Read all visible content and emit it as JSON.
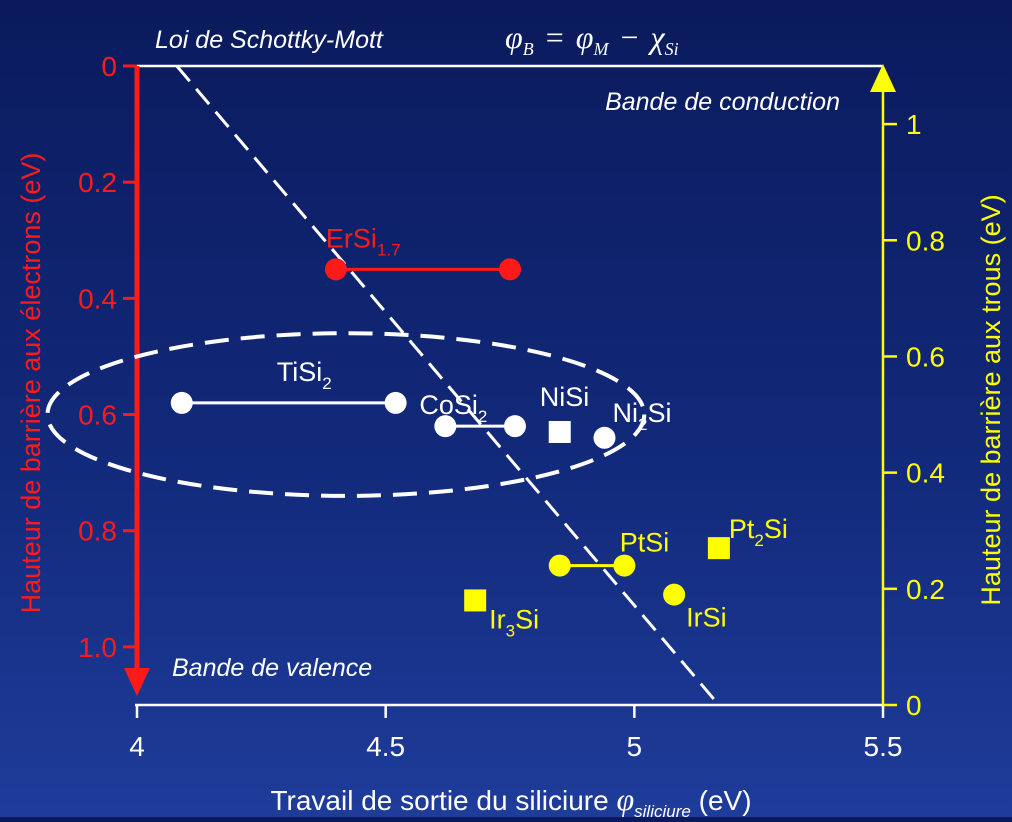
{
  "chart_data": {
    "type": "scatter",
    "title": "Loi de Schottky-Mott",
    "formula": {
      "phi": "φ",
      "B": "B",
      "eq": "=",
      "M": "M",
      "minus": "−",
      "chi": "χ",
      "Si": "Si"
    },
    "xlabel": {
      "main": "Travail de sortie du siliciure ",
      "phi": "φ",
      "sub": "siliciure",
      "unit": " (eV)"
    },
    "ylabel_left": "Hauteur de barrière aux électrons (eV)",
    "ylabel_right": "Hauteur de barrière aux trous (eV)",
    "xlim": [
      4,
      5.5
    ],
    "ylim_left": [
      0,
      1.1
    ],
    "ylim_right": [
      0,
      1.1
    ],
    "left_axis_inverted": true,
    "x_ticks": [
      "4",
      "4.5",
      "5",
      "5.5"
    ],
    "x_tick_values": [
      4,
      4.5,
      5,
      5.5
    ],
    "y_left_ticks": [
      "0",
      "0.2",
      "0.4",
      "0.6",
      "0.8",
      "1.0"
    ],
    "y_left_tick_values": [
      0,
      0.2,
      0.4,
      0.6,
      0.8,
      1.0
    ],
    "y_right_ticks": [
      "0",
      "0.2",
      "0.4",
      "0.6",
      "0.8",
      "1"
    ],
    "y_right_tick_values": [
      0,
      0.2,
      0.4,
      0.6,
      0.8,
      1.0
    ],
    "annotations": {
      "conduction": "Bande de conduction",
      "valence": "Bande de valence"
    },
    "schottky_line": {
      "x": [
        4.08,
        5.17
      ],
      "y": [
        0,
        1.1
      ]
    },
    "ellipse": {
      "center_x": 4.42,
      "center_y": 0.6,
      "radius_x": 0.6,
      "radius_y": 0.14
    },
    "ranges": [
      {
        "name": "ErSi",
        "sub": "1.7",
        "x": [
          4.4,
          4.75
        ],
        "y": 0.35,
        "color": "#ff1a1a",
        "marker": "circle"
      },
      {
        "name": "TiSi",
        "sub": "2",
        "x": [
          4.09,
          4.52
        ],
        "y": 0.58,
        "color": "#ffffff",
        "marker": "circle"
      },
      {
        "name": "CoSi",
        "sub": "2",
        "x": [
          4.62,
          4.76
        ],
        "y": 0.62,
        "color": "#ffffff",
        "marker": "circle"
      },
      {
        "name": "PtSi",
        "sub": "",
        "x": [
          4.85,
          4.98
        ],
        "y": 0.86,
        "color": "#ffff00",
        "marker": "circle"
      }
    ],
    "points": [
      {
        "name": "NiSi",
        "sub": "",
        "suffix": "",
        "x": 4.85,
        "y": 0.63,
        "color": "#ffffff",
        "marker": "square"
      },
      {
        "name": "Ni",
        "sub": "2",
        "suffix": "Si",
        "x": 4.94,
        "y": 0.64,
        "color": "#ffffff",
        "marker": "circle"
      },
      {
        "name": "Pt",
        "sub": "2",
        "suffix": "Si",
        "x": 5.17,
        "y": 0.83,
        "color": "#ffff00",
        "marker": "square"
      },
      {
        "name": "IrSi",
        "sub": "",
        "suffix": "",
        "x": 5.08,
        "y": 0.91,
        "color": "#ffff00",
        "marker": "circle"
      },
      {
        "name": "Ir",
        "sub": "3",
        "suffix": "Si",
        "x": 4.68,
        "y": 0.92,
        "color": "#ffff00",
        "marker": "square"
      }
    ],
    "colors": {
      "left_axis": "#ff1a1a",
      "right_axis": "#ffff00",
      "frame": "#ffffff",
      "text": "#ffffff"
    }
  }
}
